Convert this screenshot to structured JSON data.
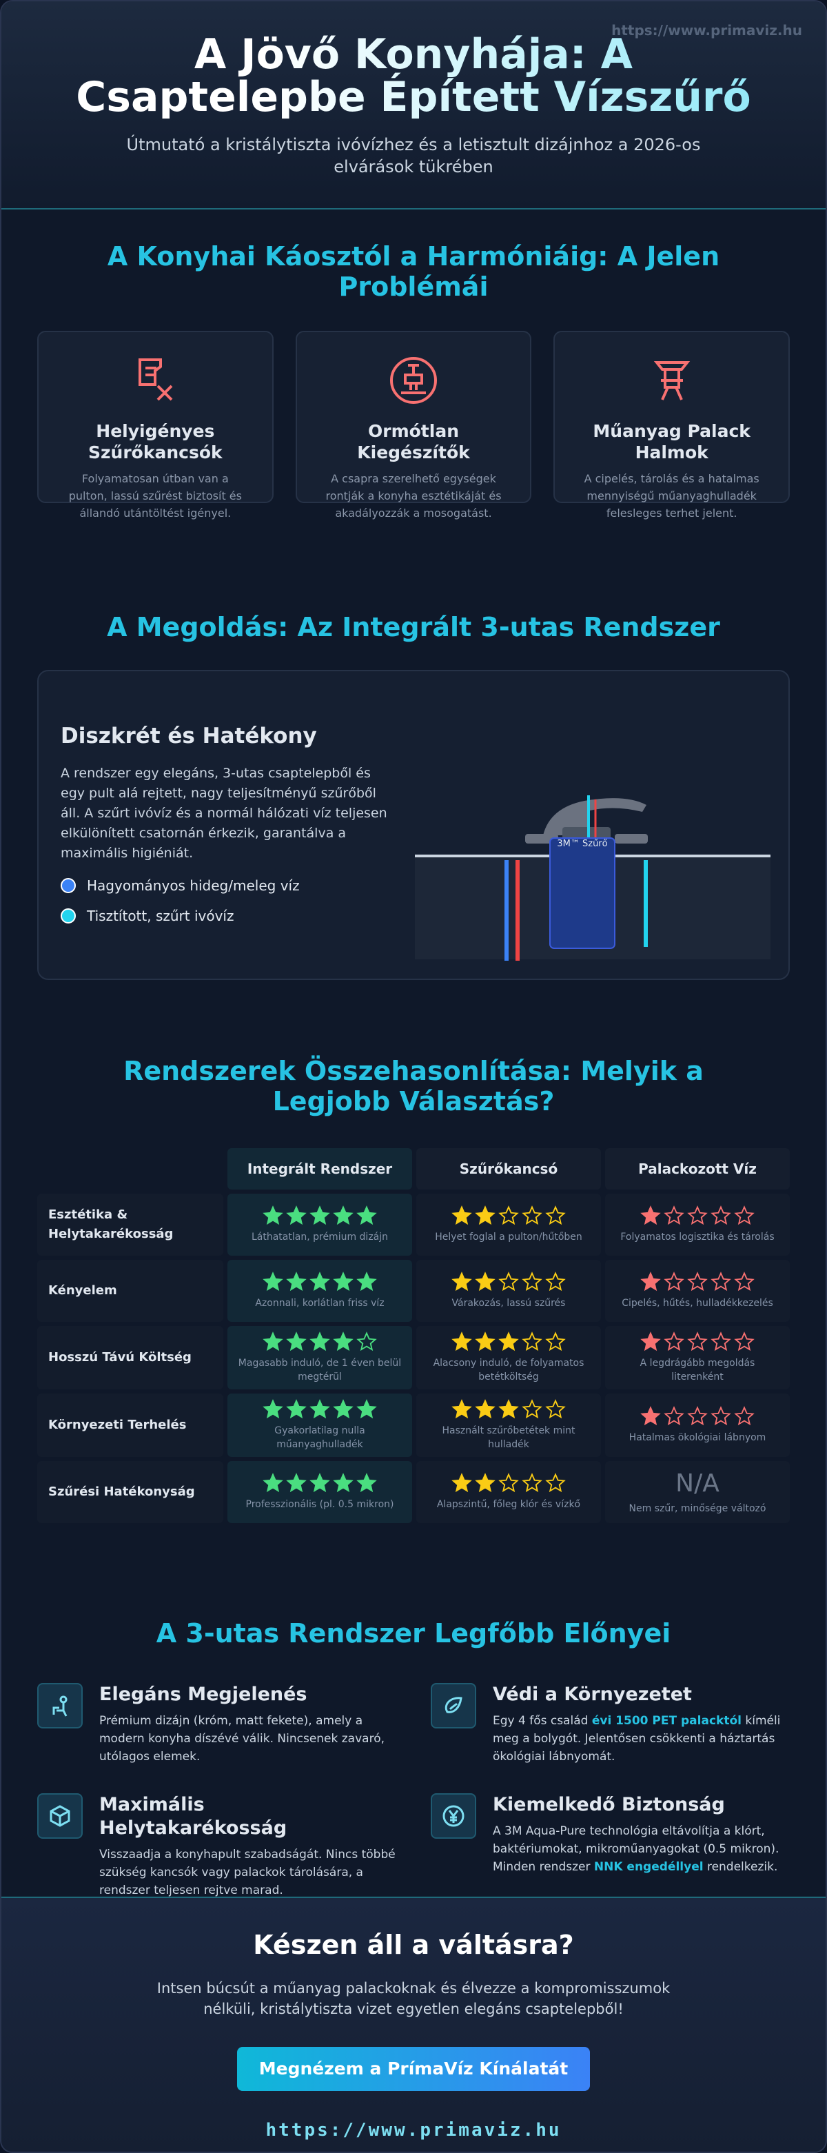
{
  "header": {
    "url": "https://www.primaviz.hu",
    "title": "A Jövő Konyhája: A Csaptelepbe Épített Vízszűrő",
    "subtitle": "Útmutató a kristálytiszta ivóvízhez és a letisztult dizájnhoz a 2026-os elvárások tükrében"
  },
  "problems": {
    "heading": "A Konyhai Káosztól a Harmóniáig: A Jelen Problémái",
    "cards": [
      {
        "title": "Helyigényes Szűrőkancsók",
        "text": "Folyamatosan útban van a pulton, lassú szűrést biztosít és állandó utántöltést igényel."
      },
      {
        "title": "Ormótlan Kiegészítők",
        "text": "A csapra szerelhető egységek rontják a konyha esztétikáját és akadályozzák a mosogatást."
      },
      {
        "title": "Műanyag Palack Halmok",
        "text": "A cipelés, tárolás és a hatalmas mennyiségű műanyaghulladék felesleges terhet jelent."
      }
    ]
  },
  "solution": {
    "heading": "A Megoldás: Az Integrált 3-utas Rendszer",
    "title": "Diszkrét és Hatékony",
    "text": "A rendszer egy elegáns, 3-utas csaptelepből és egy pult alá rejtett, nagy teljesítményű szűrőből áll. A szűrt ivóvíz és a normál hálózati víz teljesen elkülönített csatornán érkezik, garantálva a maximális higiéniát.",
    "legend": [
      "Hagyományos hideg/meleg víz",
      "Tisztított, szűrt ivóvíz"
    ],
    "filter_label": "3M™ Szűrő"
  },
  "comparison": {
    "heading": "Rendszerek Összehasonlítása: Melyik a Legjobb Választás?",
    "columns": [
      {
        "name": "Integrált Rendszer",
        "color": "#4ade80"
      },
      {
        "name": "Szűrőkancsó",
        "color": "#facc15"
      },
      {
        "name": "Palackozott Víz",
        "color": "#f87171"
      }
    ],
    "max_rating": 5,
    "rows": [
      {
        "label": "Esztétika & Helytakarékosság",
        "cells": [
          {
            "rating": 5,
            "note": "Láthatatlan, prémium dizájn"
          },
          {
            "rating": 2,
            "note": "Helyet foglal a pulton/hűtőben"
          },
          {
            "rating": 1,
            "note": "Folyamatos logisztika és tárolás"
          }
        ]
      },
      {
        "label": "Kényelem",
        "cells": [
          {
            "rating": 5,
            "note": "Azonnali, korlátlan friss víz"
          },
          {
            "rating": 2,
            "note": "Várakozás, lassú szűrés"
          },
          {
            "rating": 1,
            "note": "Cipelés, hűtés, hulladékkezelés"
          }
        ]
      },
      {
        "label": "Hosszú Távú Költség",
        "cells": [
          {
            "rating": 4,
            "note": "Magasabb induló, de 1 éven belül megtérül"
          },
          {
            "rating": 3,
            "note": "Alacsony induló, de folyamatos betétköltség"
          },
          {
            "rating": 1,
            "note": "A legdrágább megoldás literenként"
          }
        ]
      },
      {
        "label": "Környezeti Terhelés",
        "cells": [
          {
            "rating": 5,
            "note": "Gyakorlatilag nulla műanyaghulladék"
          },
          {
            "rating": 3,
            "note": "Használt szűrőbetétek mint hulladék"
          },
          {
            "rating": 1,
            "note": "Hatalmas ökológiai lábnyom"
          }
        ]
      },
      {
        "label": "Szűrési Hatékonyság",
        "cells": [
          {
            "rating": 5,
            "note": "Professzionális (pl. 0.5 mikron)"
          },
          {
            "rating": 2,
            "note": "Alapszintű, főleg klór és vízkő"
          },
          {
            "rating": null,
            "rating_label": "N/A",
            "note": "Nem szűr, minősége változó"
          }
        ]
      }
    ]
  },
  "benefits": {
    "heading": "A 3-utas Rendszer Legfőbb Előnyei",
    "items": [
      {
        "title": "Elegáns Megjelenés",
        "description": [
          "Prémium dizájn (króm, matt fekete), amely a modern konyha díszévé válik. Nincsenek zavaró, utólagos elemek."
        ]
      },
      {
        "title": "Védi a Környezetet",
        "description": [
          "Egy 4 fős család ",
          "évi 1500 PET palacktól",
          " kíméli meg a bolygót. Jelentősen csökkenti a háztartás ökológiai lábnyomát."
        ]
      },
      {
        "title": "Maximális Helytakarékosság",
        "description": [
          "Visszaadja a konyhapult szabadságát. Nincs többé szükség kancsók vagy palackok tárolására, a rendszer teljesen rejtve marad."
        ]
      },
      {
        "title": "Kiemelkedő Biztonság",
        "description": [
          "A 3M Aqua-Pure technológia eltávolítja a klórt, baktériumokat, mikroműanyagokat (0.5 mikron). Minden rendszer ",
          "NNK engedéllyel",
          " rendelkezik."
        ]
      }
    ]
  },
  "cta": {
    "title": "Készen áll a váltásra?",
    "text": "Intsen búcsút a műanyag palackoknak és élvezze a kompromisszumok nélküli, kristálytiszta vizet egyetlen elegáns csaptelepből!",
    "button": "Megnézem a PrímaVíz Kínálatát",
    "url": "https://www.primaviz.hu"
  }
}
